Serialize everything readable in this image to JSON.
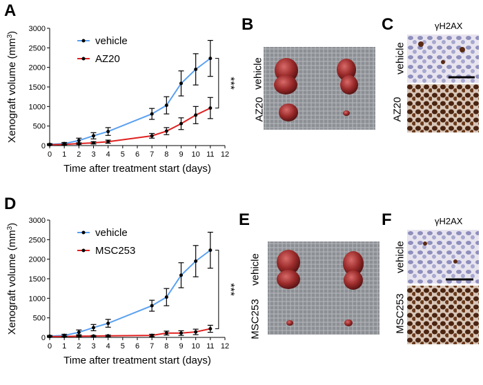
{
  "panels": {
    "A": "A",
    "B": "B",
    "C": "C",
    "D": "D",
    "E": "E",
    "F": "F"
  },
  "chart_data": [
    {
      "type": "line",
      "panel": "A",
      "xlabel": "Time after treatment start (days)",
      "ylabel": "Xenograft volume (mm3)",
      "ylabel_main": "Xenograft volume (mm",
      "ylabel_sup": "3",
      "ylabel_end": ")",
      "xlim": [
        0,
        12
      ],
      "ylim": [
        0,
        3000
      ],
      "xticks": [
        "0",
        "1",
        "2",
        "3",
        "4",
        "5",
        "6",
        "7",
        "8",
        "9",
        "10",
        "11",
        "12"
      ],
      "yticks": [
        "0",
        "500",
        "1000",
        "1500",
        "2000",
        "2500",
        "3000"
      ],
      "significance": "***",
      "series": [
        {
          "name": "vehicle",
          "color": "#5aa0f0",
          "x": [
            0,
            1,
            2,
            3,
            4,
            7,
            8,
            9,
            10,
            11
          ],
          "y": [
            30,
            50,
            130,
            250,
            360,
            810,
            1030,
            1590,
            1950,
            2230
          ],
          "err": [
            20,
            30,
            60,
            80,
            100,
            140,
            220,
            320,
            400,
            460
          ]
        },
        {
          "name": "AZ20",
          "color": "#e02020",
          "x": [
            0,
            1,
            2,
            3,
            4,
            7,
            8,
            9,
            10,
            11
          ],
          "y": [
            20,
            30,
            50,
            70,
            100,
            250,
            370,
            560,
            780,
            960
          ],
          "err": [
            10,
            15,
            20,
            30,
            40,
            60,
            90,
            150,
            220,
            270
          ]
        }
      ]
    },
    {
      "type": "line",
      "panel": "D",
      "xlabel": "Time after treatment start (days)",
      "ylabel": "Xenograft volume (mm3)",
      "ylabel_main": "Xenograft volume (mm",
      "ylabel_sup": "3",
      "ylabel_end": ")",
      "xlim": [
        0,
        12
      ],
      "ylim": [
        0,
        3000
      ],
      "xticks": [
        "0",
        "1",
        "2",
        "3",
        "4",
        "5",
        "6",
        "7",
        "8",
        "9",
        "10",
        "11",
        "12"
      ],
      "yticks": [
        "0",
        "500",
        "1000",
        "1500",
        "2000",
        "2500",
        "3000"
      ],
      "significance": "***",
      "series": [
        {
          "name": "vehicle",
          "color": "#5aa0f0",
          "x": [
            0,
            1,
            2,
            3,
            4,
            7,
            8,
            9,
            10,
            11
          ],
          "y": [
            30,
            50,
            130,
            250,
            360,
            810,
            1030,
            1590,
            1950,
            2230
          ],
          "err": [
            20,
            30,
            60,
            80,
            100,
            140,
            220,
            320,
            400,
            460
          ]
        },
        {
          "name": "MSC253",
          "color": "#e02020",
          "x": [
            0,
            1,
            2,
            3,
            4,
            7,
            8,
            9,
            10,
            11
          ],
          "y": [
            20,
            25,
            30,
            35,
            40,
            50,
            110,
            110,
            140,
            220
          ],
          "err": [
            10,
            10,
            15,
            15,
            20,
            30,
            50,
            60,
            70,
            90
          ]
        }
      ]
    }
  ],
  "photo_labels": {
    "B_top": "vehicle",
    "B_bottom": "AZ20",
    "C_title": "γH2AX",
    "C_top": "vehicle",
    "C_bottom": "AZ20",
    "E_top": "vehicle",
    "E_bottom": "MSC253",
    "F_title": "γH2AX",
    "F_top": "vehicle",
    "F_bottom": "MSC253"
  }
}
